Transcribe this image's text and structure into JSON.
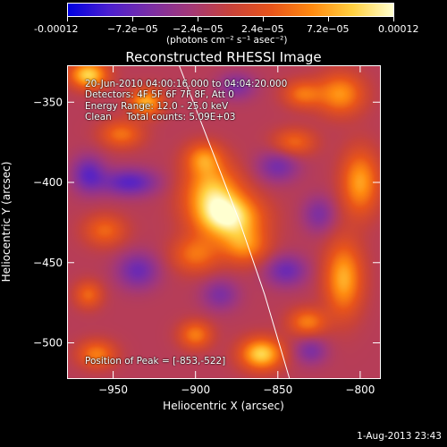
{
  "colorbar": {
    "tick_labels": [
      "-0.00012",
      "−7.2e−05",
      "−2.4e−05",
      "2.4e−05",
      "7.2e−05",
      "0.00012"
    ],
    "min": -0.00012,
    "max": 0.00012,
    "unit_label": "(photons cm⁻² s⁻¹ asec⁻²)",
    "colors": [
      "#0000e0",
      "#4b1fd0",
      "#7a2ea6",
      "#a33878",
      "#c8423a",
      "#e8541a",
      "#ff8a10",
      "#ffd040",
      "#ffffd0"
    ]
  },
  "chart_data": {
    "type": "heatmap",
    "title": "Reconstructed RHESSI Image",
    "xlabel": "Heliocentric X (arcsec)",
    "ylabel": "Heliocentric Y (arcsec)",
    "xlim": [
      -978,
      -788
    ],
    "ylim": [
      -522,
      -327
    ],
    "x_ticks": [
      -950,
      -900,
      -850,
      -800
    ],
    "x_tick_labels": [
      "−950",
      "−900",
      "−850",
      "−800"
    ],
    "y_ticks": [
      -350,
      -400,
      -450,
      -500
    ],
    "y_tick_labels": [
      "−350",
      "−400",
      "−450",
      "−500"
    ],
    "grid": false,
    "peak": {
      "x": -853,
      "y": -522
    },
    "limb_curve": [
      {
        "x": -910,
        "y": -327
      },
      {
        "x": -890,
        "y": -380
      },
      {
        "x": -873,
        "y": -425
      },
      {
        "x": -858,
        "y": -470
      },
      {
        "x": -843,
        "y": -522
      }
    ],
    "sources": [
      {
        "x": -880,
        "y": -422,
        "sx": 14,
        "sy": 10,
        "amp": 1.0
      },
      {
        "x": -890,
        "y": -405,
        "sx": 12,
        "sy": 12,
        "amp": 0.75
      },
      {
        "x": -895,
        "y": -385,
        "sx": 8,
        "sy": 7,
        "amp": 0.55
      },
      {
        "x": -870,
        "y": -440,
        "sx": 10,
        "sy": 8,
        "amp": 0.55
      },
      {
        "x": -900,
        "y": -445,
        "sx": 10,
        "sy": 8,
        "amp": 0.5
      },
      {
        "x": -965,
        "y": -333,
        "sx": 8,
        "sy": 6,
        "amp": 0.9
      },
      {
        "x": -930,
        "y": -350,
        "sx": 7,
        "sy": 6,
        "amp": 0.75
      },
      {
        "x": -945,
        "y": -370,
        "sx": 9,
        "sy": 6,
        "amp": 0.5
      },
      {
        "x": -955,
        "y": -430,
        "sx": 9,
        "sy": 7,
        "amp": 0.45
      },
      {
        "x": -860,
        "y": -507,
        "sx": 9,
        "sy": 7,
        "amp": 0.9
      },
      {
        "x": -900,
        "y": -495,
        "sx": 7,
        "sy": 6,
        "amp": 0.55
      },
      {
        "x": -832,
        "y": -487,
        "sx": 8,
        "sy": 6,
        "amp": 0.55
      },
      {
        "x": -810,
        "y": -460,
        "sx": 8,
        "sy": 16,
        "amp": 0.75
      },
      {
        "x": -800,
        "y": -400,
        "sx": 8,
        "sy": 14,
        "amp": 0.7
      },
      {
        "x": -812,
        "y": -345,
        "sx": 10,
        "sy": 9,
        "amp": 0.65
      },
      {
        "x": -840,
        "y": -375,
        "sx": 9,
        "sy": 6,
        "amp": 0.45
      },
      {
        "x": -835,
        "y": -345,
        "sx": 8,
        "sy": 6,
        "amp": 0.5
      },
      {
        "x": -965,
        "y": -470,
        "sx": 6,
        "sy": 6,
        "amp": 0.45
      },
      {
        "x": -960,
        "y": -507,
        "sx": 8,
        "sy": 6,
        "amp": 0.55
      },
      {
        "x": -940,
        "y": -400,
        "sx": 12,
        "sy": 6,
        "amp": -0.55
      },
      {
        "x": -965,
        "y": -395,
        "sx": 7,
        "sy": 8,
        "amp": -0.5
      },
      {
        "x": -935,
        "y": -455,
        "sx": 9,
        "sy": 8,
        "amp": -0.45
      },
      {
        "x": -845,
        "y": -455,
        "sx": 9,
        "sy": 7,
        "amp": -0.45
      },
      {
        "x": -850,
        "y": -390,
        "sx": 9,
        "sy": 7,
        "amp": -0.4
      },
      {
        "x": -875,
        "y": -340,
        "sx": 8,
        "sy": 6,
        "amp": -0.35
      },
      {
        "x": -885,
        "y": -470,
        "sx": 8,
        "sy": 7,
        "amp": -0.35
      },
      {
        "x": -825,
        "y": -420,
        "sx": 7,
        "sy": 8,
        "amp": -0.35
      },
      {
        "x": -830,
        "y": -505,
        "sx": 7,
        "sy": 6,
        "amp": -0.35
      }
    ]
  },
  "annotations": {
    "time_range": "20-Jun-2010 04:00:16.000 to 04:04:20.000",
    "detectors": "Detectors: 4F 5F 6F 7F 8F, Att 0",
    "energy_range": "Energy Range: 12.0 - 25.0 keV",
    "method_counts": "Clean     Total counts: 5.09E+03",
    "peak_position": "Position of Peak = [-853,-522]"
  },
  "footer": {
    "timestamp": "1-Aug-2013 23:43"
  }
}
